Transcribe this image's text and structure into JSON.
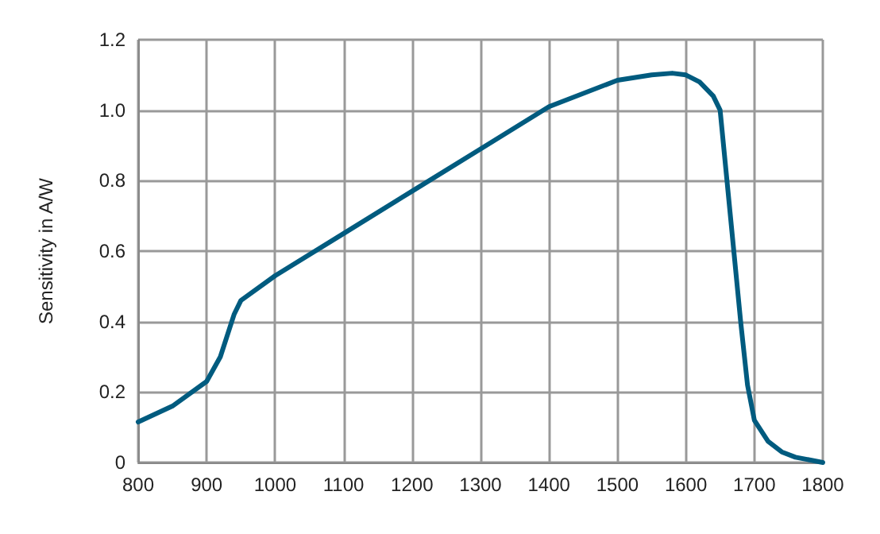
{
  "chart_data": {
    "type": "line",
    "ylabel": "Sensitivity in A/W",
    "x": [
      800,
      850,
      900,
      920,
      940,
      950,
      1000,
      1100,
      1200,
      1300,
      1400,
      1500,
      1550,
      1580,
      1600,
      1620,
      1640,
      1650,
      1660,
      1670,
      1680,
      1690,
      1700,
      1720,
      1740,
      1760,
      1800
    ],
    "series": [
      {
        "color": "#005b7f",
        "values": [
          0.115,
          0.16,
          0.23,
          0.3,
          0.42,
          0.46,
          0.53,
          0.65,
          0.77,
          0.89,
          1.01,
          1.085,
          1.1,
          1.105,
          1.1,
          1.08,
          1.04,
          1.0,
          0.8,
          0.6,
          0.4,
          0.22,
          0.12,
          0.06,
          0.03,
          0.015,
          0.0
        ]
      }
    ],
    "xlim": [
      800,
      1800
    ],
    "xticks": [
      800,
      900,
      1000,
      1100,
      1200,
      1300,
      1400,
      1500,
      1600,
      1700,
      1800
    ],
    "ylim": [
      0,
      1.2
    ],
    "yticks": [
      0,
      0.2,
      0.4,
      0.6,
      0.8,
      {
        "value": 1,
        "label": "1.0"
      },
      1.2
    ],
    "grid": true,
    "marker": "none",
    "line_style": "solid"
  }
}
